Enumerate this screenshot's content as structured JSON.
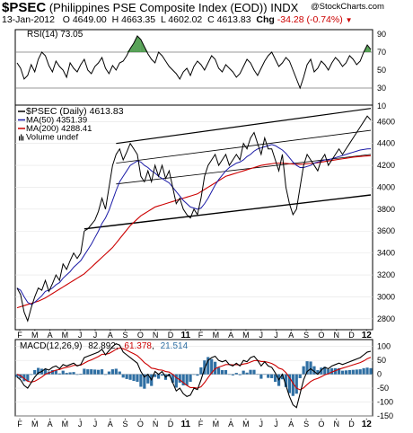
{
  "header": {
    "symbol": "$PSEC",
    "name": "(Philippines PSE Composite Index (EOD))",
    "exchange": "INDX",
    "date": "13-Jan-2012",
    "open": "O 4649.00",
    "high": "H 4663.35",
    "low": "L 4602.02",
    "close": "C 4613.83",
    "chg_label": "Chg",
    "chg_value": "-34.28 (-0.74%)",
    "chg_arrow": "▼",
    "logo": "@StockCharts.com"
  },
  "colors": {
    "price": "#000000",
    "ma50": "#1a1aa6",
    "ma200": "#cc0000",
    "macd": "#000000",
    "signal": "#cc0000",
    "histogram": "#2f6fa3",
    "rsi_overbought": "#2e8b2e",
    "negative": "#cc0000"
  },
  "x_axis": {
    "labels": [
      "F",
      "M",
      "A",
      "M",
      "J",
      "J",
      "A",
      "S",
      "O",
      "N",
      "D",
      "11",
      "F",
      "M",
      "A",
      "M",
      "J",
      "J",
      "A",
      "S",
      "O",
      "N",
      "D",
      "12"
    ],
    "bold": [
      "11",
      "12"
    ]
  },
  "chart_data": [
    {
      "type": "line",
      "panel": "rsi",
      "legend": "RSI(14) 73.05",
      "ylim": [
        10,
        95
      ],
      "yticks": [
        10,
        30,
        50,
        70,
        90
      ],
      "reference_lines": [
        30,
        70
      ],
      "last_value": 73.05,
      "values": [
        58,
        52,
        40,
        44,
        56,
        48,
        62,
        70,
        66,
        55,
        48,
        60,
        54,
        50,
        42,
        58,
        52,
        48,
        56,
        62,
        50,
        46,
        54,
        58,
        64,
        52,
        46,
        55,
        50,
        58,
        60,
        66,
        74,
        80,
        88,
        84,
        76,
        68,
        62,
        58,
        70,
        66,
        60,
        54,
        50,
        46,
        40,
        48,
        52,
        44,
        54,
        60,
        56,
        50,
        58,
        66,
        62,
        52,
        48,
        56,
        52,
        48,
        42,
        46,
        54,
        62,
        58,
        50,
        44,
        52,
        60,
        66,
        70,
        62,
        54,
        58,
        64,
        60,
        50,
        40,
        30,
        42,
        56,
        62,
        48,
        52,
        60,
        56,
        50,
        58,
        64,
        60,
        54,
        58,
        66,
        62,
        56,
        60,
        70,
        78,
        73
      ]
    },
    {
      "type": "line",
      "panel": "price",
      "title": "$PSEC (Daily) 4613.83",
      "ylim": [
        2700,
        4750
      ],
      "yticks": [
        2800,
        3000,
        3200,
        3400,
        3600,
        3800,
        4000,
        4200,
        4400,
        4600
      ],
      "series": [
        {
          "name": "$PSEC (Daily) 4613.83",
          "role": "price",
          "values": [
            3080,
            3020,
            2860,
            2780,
            2900,
            3000,
            3080,
            3060,
            3150,
            3050,
            3120,
            3200,
            3150,
            3300,
            3250,
            3330,
            3400,
            3350,
            3400,
            3600,
            3620,
            3660,
            3700,
            3780,
            3900,
            3800,
            4000,
            4200,
            4300,
            4350,
            4250,
            4320,
            4400,
            4350,
            4300,
            4100,
            4050,
            4150,
            4050,
            4200,
            4100,
            4200,
            4080,
            4150,
            4000,
            3850,
            3900,
            3800,
            3750,
            3720,
            3800,
            3750,
            3900,
            4100,
            4200,
            4250,
            4300,
            4200,
            4250,
            4300,
            4200,
            4250,
            4300,
            4250,
            4400,
            4350,
            4450,
            4500,
            4400,
            4300,
            4450,
            4350,
            4350,
            4250,
            4150,
            4300,
            4000,
            3850,
            3750,
            3800,
            4000,
            4200,
            4300,
            4250,
            4200,
            4150,
            4250,
            4300,
            4200,
            4250,
            4300,
            4350,
            4300,
            4350,
            4400,
            4450,
            4500,
            4550,
            4600,
            4650,
            4614
          ]
        },
        {
          "name": "MA(50) 4351.39",
          "role": "ma50",
          "values": [
            3080,
            3060,
            3000,
            2950,
            2930,
            2950,
            2980,
            3010,
            3050,
            3060,
            3080,
            3110,
            3130,
            3170,
            3200,
            3230,
            3270,
            3300,
            3330,
            3380,
            3430,
            3480,
            3540,
            3600,
            3670,
            3720,
            3790,
            3880,
            3970,
            4050,
            4100,
            4150,
            4200,
            4220,
            4240,
            4230,
            4200,
            4180,
            4150,
            4130,
            4100,
            4080,
            4060,
            4040,
            4000,
            3960,
            3920,
            3880,
            3850,
            3820,
            3810,
            3800,
            3810,
            3850,
            3900,
            3960,
            4020,
            4070,
            4110,
            4150,
            4180,
            4200,
            4220,
            4230,
            4250,
            4280,
            4300,
            4330,
            4350,
            4360,
            4370,
            4380,
            4390,
            4380,
            4360,
            4340,
            4310,
            4270,
            4230,
            4200,
            4180,
            4180,
            4190,
            4200,
            4220,
            4230,
            4240,
            4250,
            4250,
            4260,
            4270,
            4280,
            4290,
            4300,
            4310,
            4320,
            4330,
            4340,
            4345,
            4350,
            4351
          ]
        },
        {
          "name": "MA(200) 4288.41",
          "role": "ma200",
          "values": [
            2900,
            2910,
            2920,
            2930,
            2940,
            2950,
            2960,
            2975,
            2990,
            3010,
            3030,
            3050,
            3070,
            3090,
            3110,
            3130,
            3150,
            3170,
            3190,
            3210,
            3240,
            3270,
            3300,
            3330,
            3360,
            3390,
            3420,
            3450,
            3490,
            3530,
            3570,
            3610,
            3650,
            3680,
            3710,
            3740,
            3760,
            3780,
            3800,
            3820,
            3830,
            3840,
            3850,
            3860,
            3870,
            3880,
            3890,
            3900,
            3910,
            3920,
            3930,
            3940,
            3960,
            3980,
            4000,
            4020,
            4040,
            4060,
            4080,
            4100,
            4110,
            4120,
            4130,
            4140,
            4150,
            4160,
            4170,
            4180,
            4190,
            4200,
            4205,
            4210,
            4215,
            4220,
            4220,
            4220,
            4218,
            4215,
            4212,
            4210,
            4210,
            4212,
            4215,
            4218,
            4220,
            4225,
            4230,
            4235,
            4240,
            4245,
            4250,
            4255,
            4260,
            4265,
            4270,
            4275,
            4278,
            4281,
            4284,
            4286,
            4288
          ]
        }
      ],
      "legend": [
        {
          "label": "$PSEC (Daily) 4613.83",
          "marker": "line",
          "color": "#000000"
        },
        {
          "label": "MA(50) 4351.39",
          "marker": "line",
          "color": "#1a1aa6"
        },
        {
          "label": "MA(200) 4288.41",
          "marker": "line",
          "color": "#cc0000"
        },
        {
          "label": "Volume undef",
          "marker": "bars",
          "color": "#000000"
        }
      ]
    },
    {
      "type": "line",
      "panel": "macd",
      "legend": {
        "label": "MACD(12,26,9)",
        "macd": "82.892",
        "signal": "61.378",
        "histogram": "21.514"
      },
      "ylim": [
        -150,
        125
      ],
      "yticks": [
        -150,
        -100,
        -50,
        0,
        50,
        100
      ],
      "series": [
        {
          "name": "MACD(12,26,9) 82.892",
          "role": "macd",
          "values": [
            -10,
            -20,
            -40,
            -50,
            -30,
            -10,
            5,
            10,
            20,
            15,
            25,
            30,
            20,
            35,
            30,
            35,
            40,
            30,
            35,
            60,
            65,
            70,
            75,
            80,
            90,
            70,
            85,
            100,
            110,
            105,
            80,
            70,
            60,
            50,
            40,
            10,
            -10,
            0,
            -20,
            10,
            0,
            10,
            -10,
            0,
            -30,
            -60,
            -50,
            -70,
            -80,
            -75,
            -50,
            -55,
            -20,
            20,
            50,
            60,
            65,
            50,
            45,
            50,
            35,
            30,
            40,
            30,
            50,
            45,
            60,
            65,
            50,
            30,
            45,
            30,
            25,
            5,
            -20,
            0,
            -40,
            -80,
            -110,
            -120,
            -70,
            -20,
            10,
            20,
            10,
            0,
            15,
            25,
            20,
            30,
            35,
            40,
            35,
            40,
            45,
            50,
            55,
            60,
            70,
            80,
            83
          ]
        },
        {
          "name": "61.378",
          "role": "signal",
          "values": [
            0,
            -5,
            -15,
            -25,
            -28,
            -25,
            -18,
            -10,
            0,
            5,
            10,
            15,
            17,
            22,
            25,
            28,
            32,
            32,
            33,
            40,
            47,
            52,
            58,
            64,
            72,
            72,
            75,
            82,
            90,
            95,
            92,
            87,
            80,
            74,
            67,
            55,
            42,
            33,
            22,
            20,
            16,
            15,
            10,
            8,
            0,
            -12,
            -20,
            -30,
            -40,
            -48,
            -48,
            -50,
            -45,
            -30,
            -12,
            5,
            20,
            26,
            30,
            35,
            35,
            34,
            35,
            33,
            37,
            39,
            44,
            49,
            50,
            46,
            46,
            43,
            39,
            32,
            22,
            18,
            6,
            -12,
            -32,
            -50,
            -56,
            -49,
            -37,
            -26,
            -19,
            -15,
            -9,
            -2,
            2,
            8,
            13,
            18,
            22,
            26,
            30,
            34,
            38,
            42,
            48,
            56,
            61
          ]
        }
      ]
    }
  ]
}
